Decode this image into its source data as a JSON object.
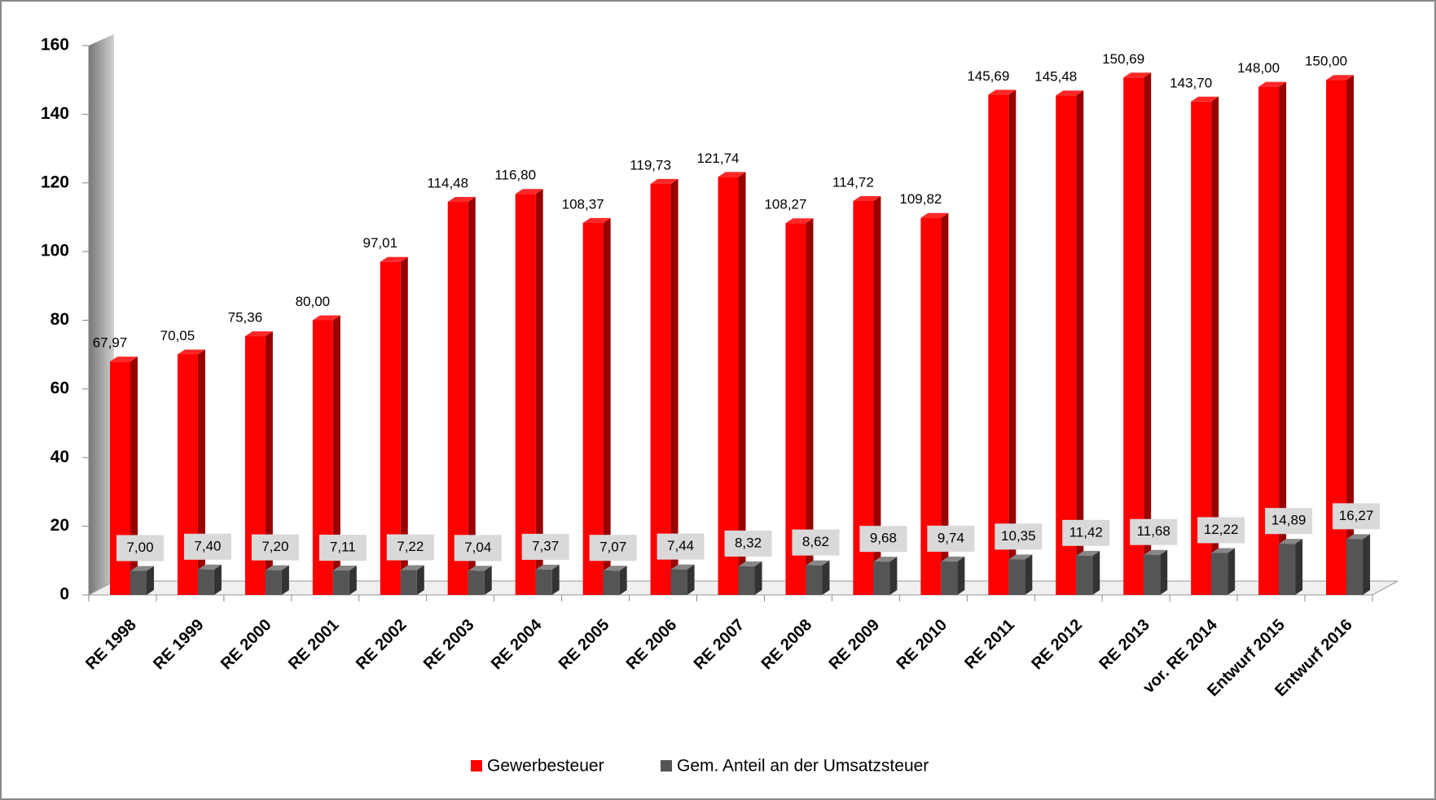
{
  "chart_data": {
    "type": "bar3d",
    "categories": [
      "RE 1998",
      "RE 1999",
      "RE 2000",
      "RE 2001",
      "RE 2002",
      "RE 2003",
      "RE 2004",
      "RE 2005",
      "RE 2006",
      "RE 2007",
      "RE 2008",
      "RE 2009",
      "RE 2010",
      "RE 2011",
      "RE 2012",
      "RE 2013",
      "vor. RE 2014",
      "Entwurf 2015",
      "Entwurf 2016"
    ],
    "series": [
      {
        "name": "Gewerbesteuer",
        "color": "#ff0000",
        "values": [
          67.97,
          70.05,
          75.36,
          80.0,
          97.01,
          114.48,
          116.8,
          108.37,
          119.73,
          121.74,
          108.27,
          114.72,
          109.82,
          145.69,
          145.48,
          150.69,
          143.7,
          148.0,
          150.0
        ],
        "value_labels": [
          "67,97",
          "70,05",
          "75,36",
          "80,00",
          "97,01",
          "114,48",
          "116,80",
          "108,37",
          "119,73",
          "121,74",
          "108,27",
          "114,72",
          "109,82",
          "145,69",
          "145,48",
          "150,69",
          "143,70",
          "148,00",
          "150,00"
        ]
      },
      {
        "name": "Gem. Anteil an der Umsatzsteuer",
        "color": "#555555",
        "values": [
          7.0,
          7.4,
          7.2,
          7.11,
          7.22,
          7.04,
          7.37,
          7.07,
          7.44,
          8.32,
          8.62,
          9.68,
          9.74,
          10.35,
          11.42,
          11.68,
          12.22,
          14.89,
          16.27
        ],
        "value_labels": [
          "7,00",
          "7,40",
          "7,20",
          "7,11",
          "7,22",
          "7,04",
          "7,37",
          "7,07",
          "7,44",
          "8,32",
          "8,62",
          "9,68",
          "9,74",
          "10,35",
          "11,42",
          "11,68",
          "12,22",
          "14,89",
          "16,27"
        ]
      }
    ],
    "ylim": [
      0,
      160
    ],
    "yticks": [
      0,
      20,
      40,
      60,
      80,
      100,
      120,
      140,
      160
    ]
  }
}
